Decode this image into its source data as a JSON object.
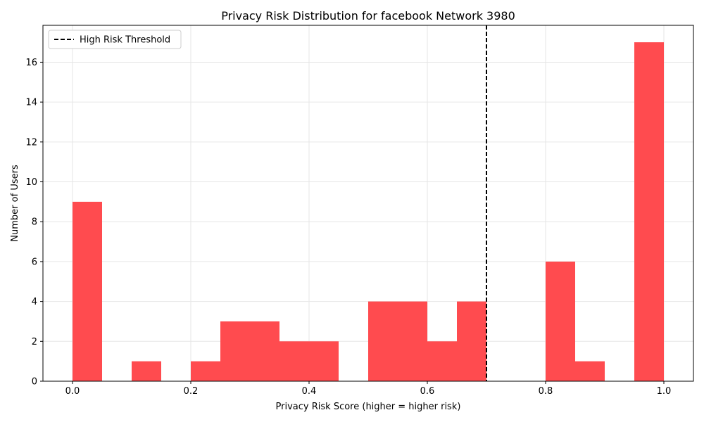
{
  "chart_data": {
    "type": "bar",
    "title": "Privacy Risk Distribution for facebook Network 3980",
    "xlabel": "Privacy Risk Score (higher = higher risk)",
    "ylabel": "Number of Users",
    "bin_width": 0.05,
    "bins": [
      {
        "x": 0.0,
        "count": 9
      },
      {
        "x": 0.05,
        "count": 0
      },
      {
        "x": 0.1,
        "count": 1
      },
      {
        "x": 0.15,
        "count": 0
      },
      {
        "x": 0.2,
        "count": 1
      },
      {
        "x": 0.25,
        "count": 3
      },
      {
        "x": 0.3,
        "count": 3
      },
      {
        "x": 0.35,
        "count": 2
      },
      {
        "x": 0.4,
        "count": 2
      },
      {
        "x": 0.45,
        "count": 0
      },
      {
        "x": 0.5,
        "count": 4
      },
      {
        "x": 0.55,
        "count": 4
      },
      {
        "x": 0.6,
        "count": 2
      },
      {
        "x": 0.65,
        "count": 4
      },
      {
        "x": 0.7,
        "count": 0
      },
      {
        "x": 0.75,
        "count": 0
      },
      {
        "x": 0.8,
        "count": 6
      },
      {
        "x": 0.85,
        "count": 1
      },
      {
        "x": 0.9,
        "count": 0
      },
      {
        "x": 0.95,
        "count": 17
      }
    ],
    "xlim": [
      -0.05,
      1.05
    ],
    "ylim": [
      0,
      17.85
    ],
    "xticks": [
      0.0,
      0.2,
      0.4,
      0.6,
      0.8,
      1.0
    ],
    "xtick_labels": [
      "0.0",
      "0.2",
      "0.4",
      "0.6",
      "0.8",
      "1.0"
    ],
    "yticks": [
      0,
      2,
      4,
      6,
      8,
      10,
      12,
      14,
      16
    ],
    "ytick_labels": [
      "0",
      "2",
      "4",
      "6",
      "8",
      "10",
      "12",
      "14",
      "16"
    ],
    "grid": true,
    "bar_color": "#ff4b4f",
    "threshold": {
      "value": 0.7,
      "label": "High Risk Threshold",
      "color": "#000000",
      "style": "dashed"
    },
    "legend_position": "top-left"
  }
}
